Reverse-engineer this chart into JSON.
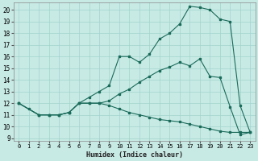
{
  "xlabel": "Humidex (Indice chaleur)",
  "bg_color": "#c8eae5",
  "grid_color": "#a0d4cc",
  "line_color": "#1a6b5a",
  "xlim": [
    -0.5,
    23.5
  ],
  "ylim": [
    8.8,
    20.6
  ],
  "xticks": [
    0,
    1,
    2,
    3,
    4,
    5,
    6,
    7,
    8,
    9,
    10,
    11,
    12,
    13,
    14,
    15,
    16,
    17,
    18,
    19,
    20,
    21,
    22,
    23
  ],
  "yticks": [
    9,
    10,
    11,
    12,
    13,
    14,
    15,
    16,
    17,
    18,
    19,
    20
  ],
  "line1_x": [
    0,
    1,
    2,
    3,
    4,
    5,
    6,
    7,
    8,
    9,
    10,
    11,
    12,
    13,
    14,
    15,
    16,
    17,
    18,
    19,
    20,
    21,
    22,
    23
  ],
  "line1_y": [
    12,
    11.5,
    11,
    11,
    11,
    11.2,
    12,
    12.5,
    13,
    13.5,
    16,
    16,
    15.5,
    16.2,
    17.5,
    18.0,
    18.8,
    20.3,
    20.2,
    20.0,
    19.2,
    19.0,
    11.8,
    9.5
  ],
  "line2_x": [
    0,
    2,
    3,
    4,
    5,
    6,
    7,
    8,
    9,
    10,
    11,
    12,
    13,
    14,
    15,
    16,
    17,
    18,
    19,
    20,
    21,
    22,
    23
  ],
  "line2_y": [
    12,
    11,
    11,
    11,
    11.2,
    12,
    12,
    12,
    12.2,
    12.8,
    13.2,
    13.8,
    14.3,
    14.8,
    15.1,
    15.5,
    15.2,
    15.8,
    14.3,
    14.2,
    11.7,
    9.3,
    9.5
  ],
  "line3_x": [
    0,
    2,
    3,
    4,
    5,
    6,
    7,
    8,
    9,
    10,
    11,
    12,
    13,
    14,
    15,
    16,
    17,
    18,
    19,
    20,
    21,
    22,
    23
  ],
  "line3_y": [
    12,
    11,
    11,
    11,
    11.2,
    12,
    12,
    12,
    11.8,
    11.5,
    11.2,
    11.0,
    10.8,
    10.6,
    10.5,
    10.4,
    10.2,
    10.0,
    9.8,
    9.6,
    9.5,
    9.5,
    9.5
  ]
}
